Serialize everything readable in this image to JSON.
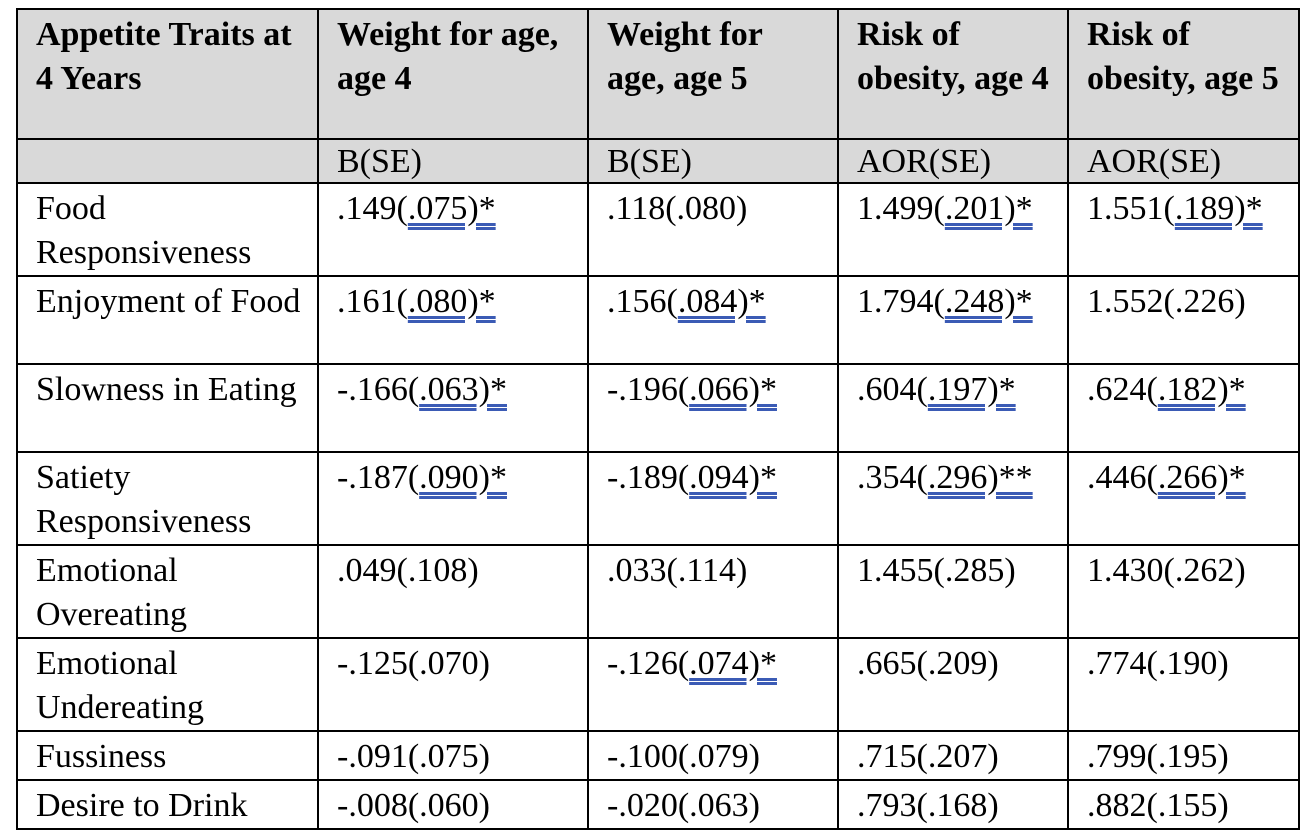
{
  "table": {
    "headers": [
      "Appetite Traits at 4 Years",
      "Weight for age, age 4",
      "Weight for age, age 5",
      "Risk of obesity, age 4",
      "Risk of obesity, age 5"
    ],
    "subheaders": [
      "",
      "B(SE)",
      "B(SE)",
      "AOR(SE)",
      "AOR(SE)"
    ],
    "rows": [
      {
        "trait": "Food Responsiveness",
        "cells": [
          {
            "pre": ".149(",
            "link": ".075)*"
          },
          {
            "pre": ".118(.080)",
            "link": ""
          },
          {
            "pre": "1.499(",
            "link": ".201)*"
          },
          {
            "pre": "1.551(",
            "link": ".189)*"
          }
        ]
      },
      {
        "trait": "Enjoyment of Food",
        "cells": [
          {
            "pre": ".161(",
            "link": ".080)*"
          },
          {
            "pre": ".156(",
            "link": ".084)*"
          },
          {
            "pre": "1.794(",
            "link": ".248)*"
          },
          {
            "pre": "1.552(.226)",
            "link": ""
          }
        ]
      },
      {
        "trait": "Slowness in Eating",
        "cells": [
          {
            "pre": "-.166(",
            "link": ".063)*"
          },
          {
            "pre": "-.196(",
            "link": ".066)*"
          },
          {
            "pre": ".604(",
            "link": ".197)*"
          },
          {
            "pre": ".624(",
            "link": ".182)*"
          }
        ]
      },
      {
        "trait": "Satiety Responsiveness",
        "cells": [
          {
            "pre": "-.187(",
            "link": ".090)*"
          },
          {
            "pre": "-.189(",
            "link": ".094)*"
          },
          {
            "pre": ".354(",
            "link": ".296)**"
          },
          {
            "pre": ".446(",
            "link": ".266)*"
          }
        ]
      },
      {
        "trait": "Emotional Overeating",
        "cells": [
          {
            "pre": ".049(.108)",
            "link": ""
          },
          {
            "pre": ".033(.114)",
            "link": ""
          },
          {
            "pre": "1.455(.285)",
            "link": ""
          },
          {
            "pre": "1.430(.262)",
            "link": ""
          }
        ]
      },
      {
        "trait": "Emotional Undereating",
        "cells": [
          {
            "pre": "-.125(.070)",
            "link": ""
          },
          {
            "pre": "-.126(",
            "link": ".074)*"
          },
          {
            "pre": ".665(.209)",
            "link": ""
          },
          {
            "pre": ".774(.190)",
            "link": ""
          }
        ]
      },
      {
        "trait": "Fussiness",
        "cells": [
          {
            "pre": "-.091(.075)",
            "link": ""
          },
          {
            "pre": "-.100(.079)",
            "link": ""
          },
          {
            "pre": ".715(.207)",
            "link": ""
          },
          {
            "pre": ".799(.195)",
            "link": ""
          }
        ]
      },
      {
        "trait": "Desire to Drink",
        "cells": [
          {
            "pre": "-.008(.060)",
            "link": ""
          },
          {
            "pre": "-.020(.063)",
            "link": ""
          },
          {
            "pre": ".793(.168)",
            "link": ""
          },
          {
            "pre": ".882(.155)",
            "link": ""
          }
        ]
      }
    ]
  },
  "colors": {
    "header_bg": "#d9d9d9",
    "underline": "#3b5bb5",
    "border": "#000000"
  }
}
